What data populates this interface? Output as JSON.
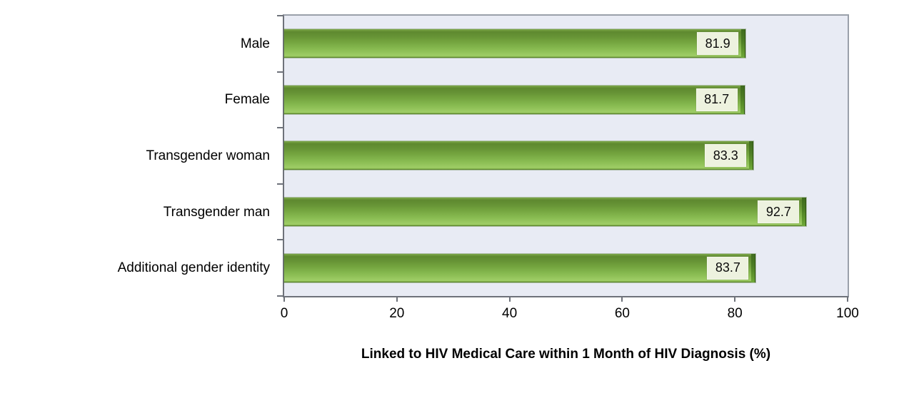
{
  "figure": {
    "background": "#ffffff",
    "plot_background": "#e8ebf4",
    "axis_color": "#6e727a",
    "plot_border_color": "#9aa0aa",
    "bar_color_main": "#74a53f",
    "bar_color_light": "#9ccb63",
    "bar_color_dark": "#4c7c24",
    "value_box_background": "#edf2df"
  },
  "chart_data": {
    "type": "bar",
    "orientation": "horizontal",
    "title": "",
    "xlabel": "Linked to HIV Medical Care within 1 Month of HIV Diagnosis (%)",
    "ylabel": "",
    "categories": [
      "Male",
      "Female",
      "Transgender woman",
      "Transgender man",
      "Additional gender identity"
    ],
    "values": [
      81.9,
      81.7,
      83.3,
      92.7,
      83.7
    ],
    "value_labels": [
      "81.9",
      "81.7",
      "83.3",
      "92.7",
      "83.7"
    ],
    "xlim": [
      0,
      100
    ],
    "x_ticks": [
      0,
      20,
      40,
      60,
      80,
      100
    ],
    "x_tick_labels": [
      "0",
      "20",
      "40",
      "60",
      "80",
      "100"
    ],
    "grid": false,
    "legend": null
  }
}
